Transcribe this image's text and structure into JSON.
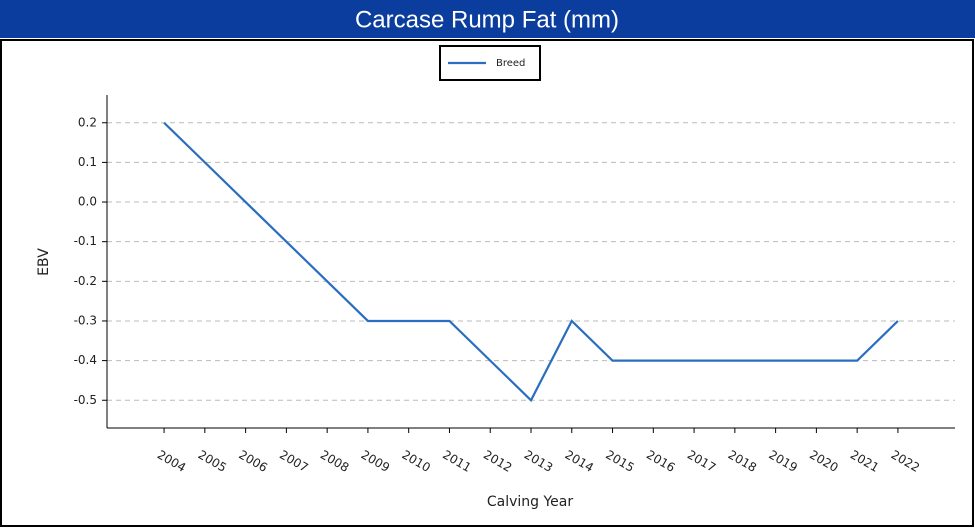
{
  "chart_data": {
    "type": "line",
    "title": "Carcase Rump Fat (mm)",
    "x_label": "Calving Year",
    "y_label": "EBV",
    "categories": [
      "2004",
      "2005",
      "2006",
      "2007",
      "2008",
      "2009",
      "2010",
      "2011",
      "2012",
      "2013",
      "2014",
      "2015",
      "2016",
      "2017",
      "2018",
      "2019",
      "2020",
      "2021",
      "2022"
    ],
    "series": [
      {
        "name": "Breed",
        "color": "#2a6ebf",
        "values": [
          0.2,
          0.1,
          0.0,
          -0.1,
          -0.2,
          -0.3,
          -0.3,
          -0.3,
          -0.4,
          -0.5,
          -0.3,
          -0.4,
          -0.4,
          -0.4,
          -0.4,
          -0.4,
          -0.4,
          -0.4,
          -0.3
        ]
      }
    ],
    "ylim": [
      -0.57,
      0.27
    ],
    "yticks": [
      0.2,
      0.1,
      {
        "value": 0,
        "label": "0.0"
      },
      -0.1,
      -0.2,
      -0.3,
      -0.4,
      -0.5
    ],
    "grid": true,
    "legend": "top"
  }
}
